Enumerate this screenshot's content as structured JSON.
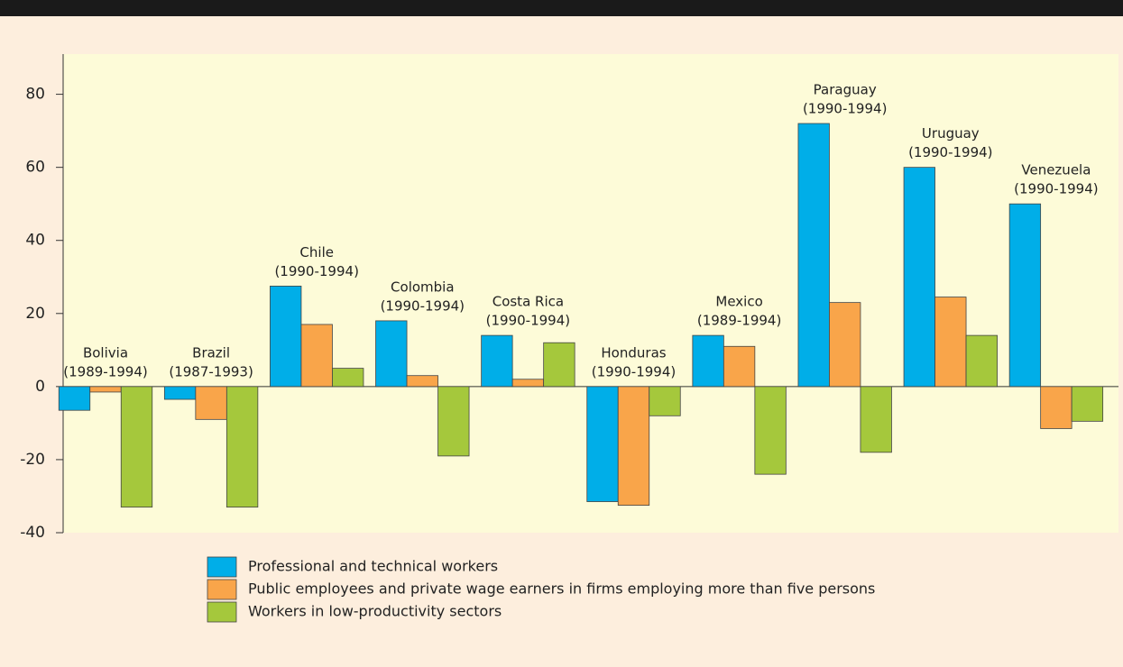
{
  "chart_data": {
    "type": "bar",
    "categories": [
      "Bolivia",
      "Brazil",
      "Chile",
      "Colombia",
      "Costa Rica",
      "Honduras",
      "Mexico",
      "Paraguay",
      "Uruguay",
      "Venezuela"
    ],
    "periods": [
      "(1989-1994)",
      "(1987-1993)",
      "(1990-1994)",
      "(1990-1994)",
      "(1990-1994)",
      "(1990-1994)",
      "(1989-1994)",
      "(1990-1994)",
      "(1990-1994)",
      "(1990-1994)"
    ],
    "series": [
      {
        "name": "Professional and technical workers",
        "color": "#00aee8",
        "values": [
          -6.5,
          -3.5,
          27.5,
          18,
          14,
          -31.5,
          14,
          72,
          60,
          50
        ]
      },
      {
        "name": "Public employees and private wage earners in firms employing more than five persons",
        "color": "#f9a54a",
        "values": [
          -1.5,
          -9,
          17,
          3,
          2,
          -32.5,
          11,
          23,
          24.5,
          -11.5
        ]
      },
      {
        "name": "Workers in low-productivity sectors",
        "color": "#a5c83c",
        "values": [
          -33,
          -33,
          5,
          -19,
          12,
          -8,
          -24,
          -18,
          14,
          -9.5
        ]
      }
    ],
    "ylim": [
      -40,
      91
    ],
    "yticks": [
      -40,
      -20,
      0,
      20,
      40,
      60,
      80
    ]
  }
}
